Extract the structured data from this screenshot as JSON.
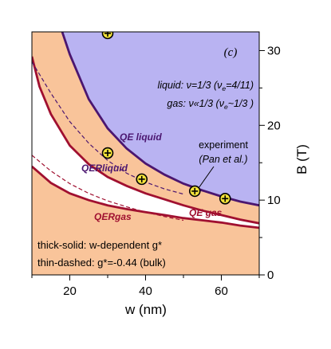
{
  "chart_data": {
    "type": "line",
    "panel_label": "(c)",
    "xlabel": "w (nm)",
    "ylabel": "B (T)",
    "xlim": [
      10,
      70
    ],
    "ylim": [
      0,
      32.5
    ],
    "x_ticks": [
      20,
      40,
      60
    ],
    "y_ticks": [
      0,
      10,
      20,
      30
    ],
    "grid": false,
    "y_axis_side": "right",
    "region_colors": {
      "liquid": "#b9b3f2",
      "gap": "#ffffff",
      "gas": "#f9c49a"
    },
    "curve_colors": {
      "qe_liquid_boundary": "#4b1670",
      "qer_liquid_boundary": "#a01030",
      "qer_gas_boundary": "#a01030"
    },
    "series": [
      {
        "name": "QE liquid",
        "style": "thick-solid",
        "x": [
          18,
          20,
          25,
          30,
          35,
          40,
          45,
          50,
          55,
          60,
          65,
          70
        ],
        "y": [
          32.5,
          29.5,
          23.5,
          19.6,
          16.9,
          14.9,
          13.4,
          12.2,
          11.3,
          10.5,
          9.8,
          9.3
        ]
      },
      {
        "name": "QER liquid",
        "style": "thick-solid",
        "x": [
          10,
          12,
          15,
          20,
          25,
          30,
          35,
          40,
          45,
          50,
          55,
          60,
          65,
          70
        ],
        "y": [
          29.2,
          25.2,
          21.5,
          17.3,
          14.8,
          13.1,
          11.9,
          10.9,
          10.1,
          9.3,
          8.6,
          8.0,
          7.4,
          6.9
        ]
      },
      {
        "name": "QER gas",
        "style": "thick-solid",
        "x": [
          10,
          15,
          20,
          25,
          30,
          35,
          40,
          45,
          50,
          55,
          60,
          65,
          70
        ],
        "y": [
          14.5,
          12.3,
          10.9,
          10.0,
          9.3,
          8.8,
          8.4,
          8.0,
          7.6,
          7.3,
          7.0,
          6.6,
          6.3
        ]
      },
      {
        "name": "QER liquid (bulk g*)",
        "style": "thin-dashed",
        "x": [
          10,
          15,
          20,
          25,
          30,
          35,
          40,
          45,
          50
        ],
        "y": [
          28.5,
          24.3,
          20.5,
          17.6,
          15.3,
          13.6,
          12.4,
          11.5,
          10.8
        ]
      },
      {
        "name": "QER gas (bulk g*)",
        "style": "thin-dashed",
        "x": [
          10,
          15,
          20,
          25,
          30,
          35,
          40,
          45,
          50
        ],
        "y": [
          16.0,
          13.9,
          12.2,
          10.9,
          9.9,
          9.1,
          8.4,
          7.8,
          7.3
        ]
      }
    ],
    "experiment_points": {
      "name": "experiment",
      "x": [
        30,
        30,
        39,
        53,
        61
      ],
      "y": [
        32.3,
        16.3,
        12.8,
        11.2,
        10.2
      ]
    },
    "labels": {
      "qe_liquid": "QE liquid",
      "qer_liquid": "QERliquid",
      "qer_gas": "QERgas",
      "qe_gas": "QE gas",
      "experiment_1": "experiment",
      "experiment_2": "(Pan et al.)",
      "liquid_def_1": "liquid: ν=1/3 (ν",
      "liquid_def_sub": "e",
      "liquid_def_2": "=4/11)",
      "gas_def_1": "gas: ν«1/3 (ν",
      "gas_def_sub": "e",
      "gas_def_2": "~1/3  )",
      "legend_1": "thick-solid: w-dependent g*",
      "legend_2": "thin-dashed: g*=-0.44 (bulk)"
    }
  }
}
